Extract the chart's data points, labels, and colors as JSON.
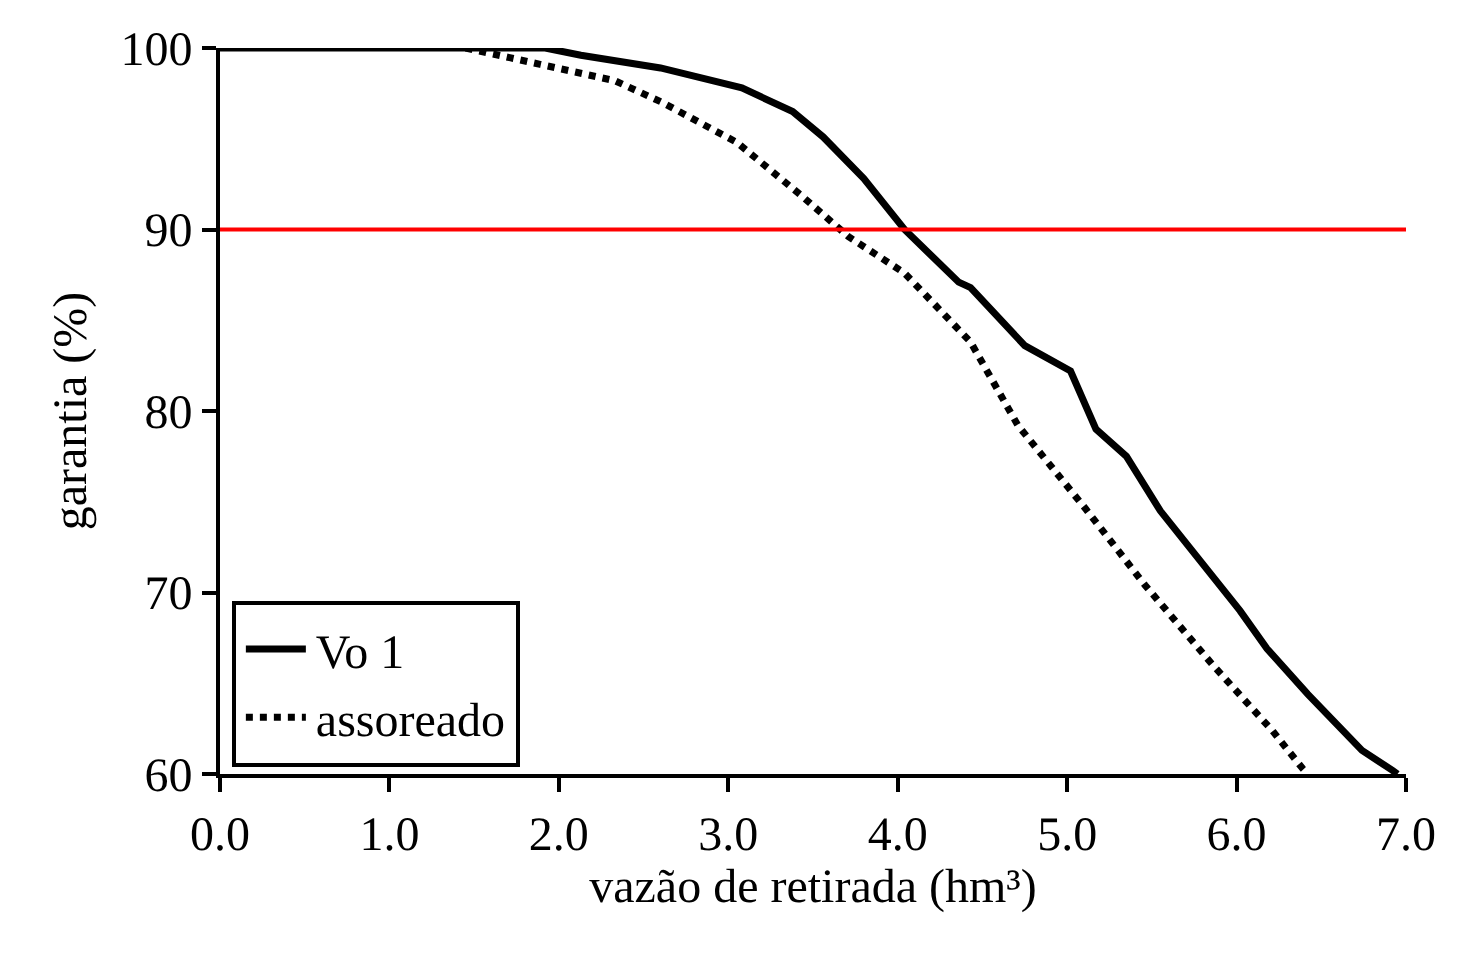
{
  "chart_data": {
    "type": "line",
    "xlabel": "vazão de retirada (hm³)",
    "ylabel": "garantia (%)",
    "xlim": [
      0,
      7
    ],
    "xticks": [
      {
        "value": 0,
        "label": "0.0"
      },
      {
        "value": 1,
        "label": "1.0"
      },
      {
        "value": 2,
        "label": "2.0"
      },
      {
        "value": 3,
        "label": "3.0"
      },
      {
        "value": 4,
        "label": "4.0"
      },
      {
        "value": 5,
        "label": "5.0"
      },
      {
        "value": 6,
        "label": "6.0"
      },
      {
        "value": 7,
        "label": "7.0"
      }
    ],
    "ylim": [
      60,
      100
    ],
    "yticks": [
      60,
      70,
      80,
      90,
      100
    ],
    "legend": "bottom left",
    "ref_lines": [
      {
        "axis": "y",
        "value": 90,
        "color": "#ff0000",
        "line_style": "solid"
      }
    ],
    "series": [
      {
        "name": "Vo 1",
        "color": "#000000",
        "line_style": "solid",
        "x": [
          0,
          1.92,
          2.13,
          2.6,
          3.08,
          3.38,
          3.56,
          3.8,
          4.04,
          4.36,
          4.43,
          4.75,
          5.02,
          5.17,
          5.35,
          5.55,
          6.02,
          6.18,
          6.42,
          6.74,
          6.92,
          6.95
        ],
        "values": [
          100,
          100,
          99.6,
          98.9,
          97.8,
          96.5,
          95.1,
          92.8,
          90,
          87.1,
          86.8,
          83.6,
          82.2,
          79.0,
          77.5,
          74.5,
          69.0,
          66.9,
          64.4,
          61.3,
          60.2,
          60
        ]
      },
      {
        "name": "assoreado",
        "color": "#000000",
        "line_style": "dotted",
        "x": [
          1.45,
          1.89,
          2.33,
          2.61,
          3.05,
          3.44,
          3.71,
          4.04,
          4.43,
          4.71,
          5.11,
          5.46,
          5.86,
          6.21,
          6.39,
          6.42
        ],
        "values": [
          100,
          99.1,
          98.2,
          97.0,
          94.8,
          91.8,
          89.6,
          87.6,
          83.8,
          79.2,
          74.6,
          70.4,
          66.0,
          62.4,
          60.3,
          60
        ]
      }
    ]
  }
}
